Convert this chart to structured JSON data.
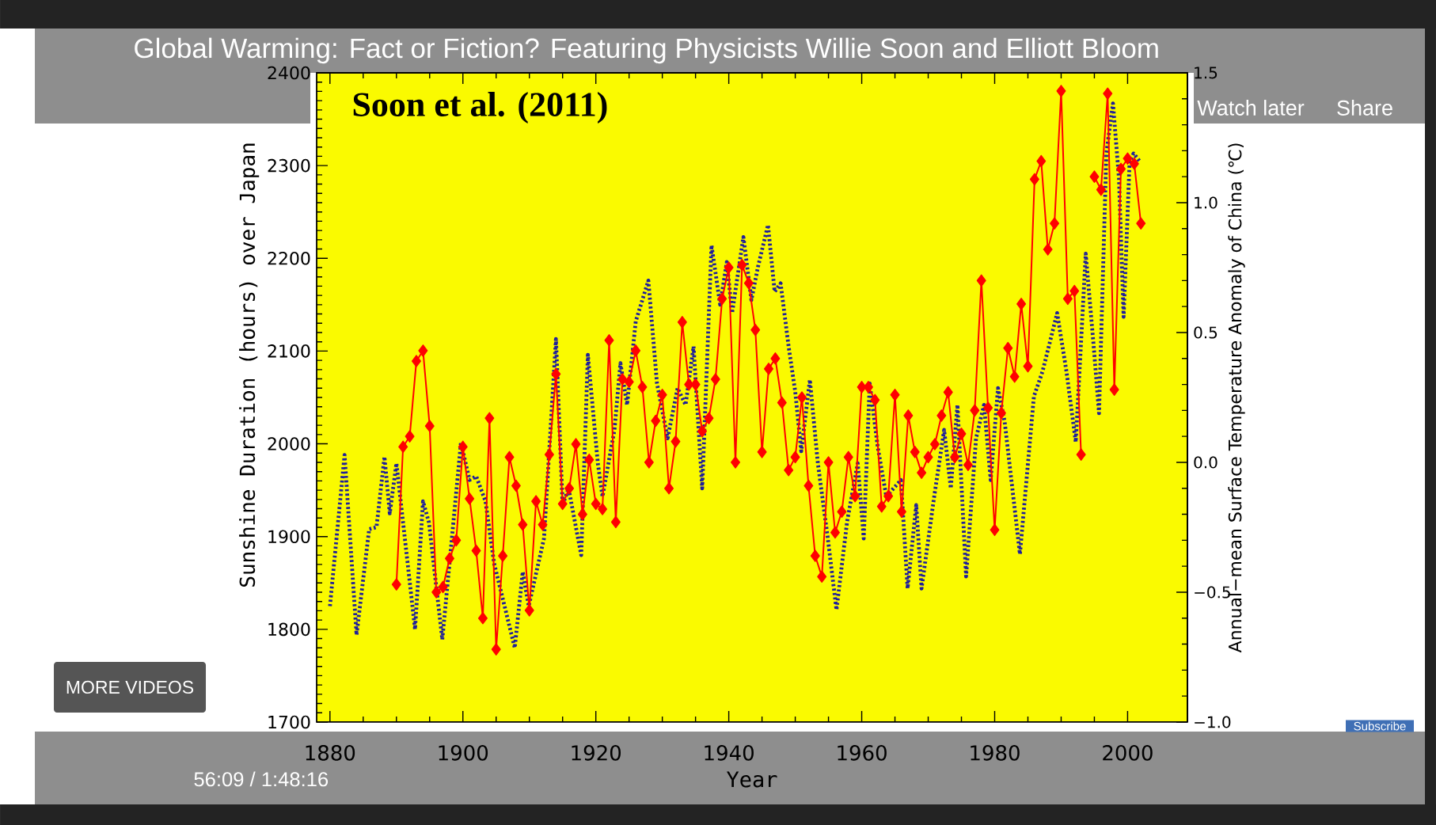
{
  "chart_data": {
    "type": "line",
    "title": "Global Warming: Fact or Fiction? Featuring Physicists Willie Soon and Elliott Bloom",
    "subtitle": "Soon et al. (2011)",
    "xlabel": "Year",
    "ylabel": "Sunshine Duration (hours) over Japan",
    "y2label": "Annual−mean Surface Temperature Anomaly of China (℃)",
    "annotations": [
      "Watch later",
      "Share",
      "MORE VIDEOS",
      "Subscribe",
      "56:09 / 1:48:16"
    ],
    "xlim": [
      1878,
      2009
    ],
    "xticks": [
      1880,
      1900,
      1920,
      1940,
      1960,
      1980,
      2000
    ],
    "ylim": [
      1700,
      2400
    ],
    "yticks": [
      1700,
      1800,
      1900,
      2000,
      2100,
      2200,
      2300,
      2400
    ],
    "y2lim": [
      -1.0,
      1.5
    ],
    "y2ticks": [
      {
        "value": -1.0,
        "label": "−1.0"
      },
      {
        "value": -0.5,
        "label": "−0.5"
      },
      {
        "value": 0.0,
        "label": "0.0"
      },
      {
        "value": 0.5,
        "label": "0.5"
      },
      {
        "value": 1.0,
        "label": "1.0"
      },
      {
        "value": 1.5,
        "label": "1.5"
      }
    ],
    "series": [
      {
        "color": "#1f1f9a",
        "line_style": "dotted",
        "marker": "none",
        "x": [
          1880.0,
          1882.2,
          1884.0,
          1885.9,
          1887.0,
          1888.2,
          1889.0,
          1890.0,
          1892.8,
          1894.0,
          1894.9,
          1896.9,
          1899.7,
          1901.0,
          1902.0,
          1903.4,
          1904.7,
          1907.8,
          1909.0,
          1909.9,
          1912.2,
          1914.0,
          1915.0,
          1915.9,
          1917.8,
          1918.8,
          1920.3,
          1921.0,
          1922.8,
          1923.7,
          1924.7,
          1926.0,
          1927.9,
          1929.2,
          1930.8,
          1932.3,
          1933.5,
          1934.7,
          1936.0,
          1937.4,
          1938.7,
          1939.7,
          1940.5,
          1942.2,
          1943.4,
          1944.4,
          1945.9,
          1946.9,
          1947.8,
          1949.0,
          1950.0,
          1950.9,
          1952.2,
          1953.4,
          1954.9,
          1956.2,
          1957.8,
          1959.4,
          1960.3,
          1961.2,
          1962.4,
          1963.7,
          1965.9,
          1966.9,
          1968.2,
          1969.0,
          1970.9,
          1972.4,
          1973.4,
          1974.4,
          1975.7,
          1977.2,
          1978.4,
          1979.4,
          1980.5,
          1981.5,
          1983.8,
          1985.9,
          1987.2,
          1989.4,
          1990.8,
          1992.2,
          1993.7,
          1994.9,
          1995.7,
          1996.8,
          1997.8,
          1998.7,
          1999.4,
          2000.3,
          2000.9,
          2001.9
        ],
        "values": [
          1825,
          1988,
          1794,
          1908,
          1910,
          1986,
          1925,
          1979,
          1800,
          1938,
          1915,
          1789,
          2001,
          1961,
          1965,
          1938,
          1871,
          1780,
          1862,
          1825,
          1898,
          2113,
          1934,
          1952,
          1880,
          2096,
          1979,
          1943,
          2015,
          2087,
          2042,
          2132,
          2176,
          2065,
          2006,
          2060,
          2042,
          2105,
          1952,
          2214,
          2150,
          2196,
          2141,
          2223,
          2155,
          2191,
          2236,
          2164,
          2173,
          2105,
          2056,
          1992,
          2069,
          1979,
          1898,
          1821,
          1916,
          1979,
          1898,
          2065,
          1997,
          1943,
          1961,
          1844,
          1934,
          1844,
          1943,
          2015,
          1952,
          2042,
          1857,
          2006,
          2042,
          1961,
          2060,
          2024,
          1881,
          2051,
          2078,
          2141,
          2078,
          2002,
          2205,
          2105,
          2033,
          2313,
          2367,
          2286,
          2137,
          2304,
          2313,
          2304
        ]
      },
      {
        "color": "#ff0000",
        "marker": "diamond",
        "line_style": "solid",
        "axis": "y2",
        "x": [
          1890,
          1891,
          1892,
          1893,
          1894,
          1895,
          1896,
          1897,
          1898,
          1899,
          1900,
          1901,
          1902,
          1903,
          1904,
          1905,
          1906,
          1907,
          1908,
          1909,
          1910,
          1911,
          1912,
          1913,
          1914,
          1915,
          1916,
          1917,
          1918,
          1919,
          1920,
          1921,
          1922,
          1923,
          1924,
          1925,
          1926,
          1927,
          1928,
          1929,
          1930,
          1931,
          1932,
          1933,
          1934,
          1935,
          1936,
          1937,
          1938,
          1939,
          1940,
          1941,
          1942,
          1943,
          1944,
          1945,
          1946,
          1947,
          1948,
          1949,
          1950,
          1951,
          1952,
          1953,
          1954,
          1955,
          1956,
          1957,
          1958,
          1959,
          1960,
          1961,
          1962,
          1963,
          1964,
          1965,
          1966,
          1967,
          1968,
          1969,
          1970,
          1971,
          1972,
          1973,
          1974,
          1975,
          1976,
          1977,
          1978,
          1979,
          1980,
          1981,
          1982,
          1983,
          1984,
          1985,
          1986,
          1987,
          1988,
          1989,
          1990,
          1991,
          1992,
          1993,
          1994,
          1995,
          1996,
          1997,
          1998,
          1999,
          2000,
          2001,
          2002
        ],
        "values": [
          -0.47,
          0.06,
          0.1,
          0.39,
          0.43,
          0.14,
          -0.5,
          -0.48,
          -0.37,
          -0.3,
          0.06,
          -0.14,
          -0.34,
          -0.6,
          0.17,
          -0.72,
          -0.36,
          0.02,
          -0.09,
          -0.24,
          -0.57,
          -0.15,
          -0.24,
          0.03,
          0.34,
          -0.16,
          -0.1,
          0.07,
          -0.2,
          0.01,
          -0.16,
          -0.18,
          0.47,
          -0.23,
          0.32,
          0.31,
          0.43,
          0.29,
          0.0,
          0.16,
          0.26,
          -0.1,
          0.08,
          0.54,
          0.3,
          0.3,
          0.12,
          0.17,
          0.32,
          0.63,
          0.75,
          0.0,
          0.76,
          0.69,
          0.51,
          0.04,
          0.36,
          0.4,
          0.23,
          -0.03,
          0.02,
          0.25,
          -0.09,
          -0.36,
          -0.44,
          0.0,
          -0.27,
          -0.19,
          0.02,
          -0.13,
          0.29,
          0.29,
          0.24,
          -0.17,
          -0.13,
          0.26,
          -0.19,
          0.18,
          0.04,
          -0.04,
          0.02,
          0.07,
          0.18,
          0.27,
          0.02,
          0.11,
          -0.01,
          0.2,
          0.7,
          0.21,
          -0.26,
          0.19,
          0.44,
          0.33,
          0.61,
          0.37,
          1.09,
          1.16,
          0.82,
          0.92,
          1.43,
          0.63,
          0.66,
          0.03,
          null,
          1.1,
          1.05,
          1.42,
          0.28,
          1.13,
          1.17,
          1.15,
          0.92
        ]
      }
    ]
  }
}
